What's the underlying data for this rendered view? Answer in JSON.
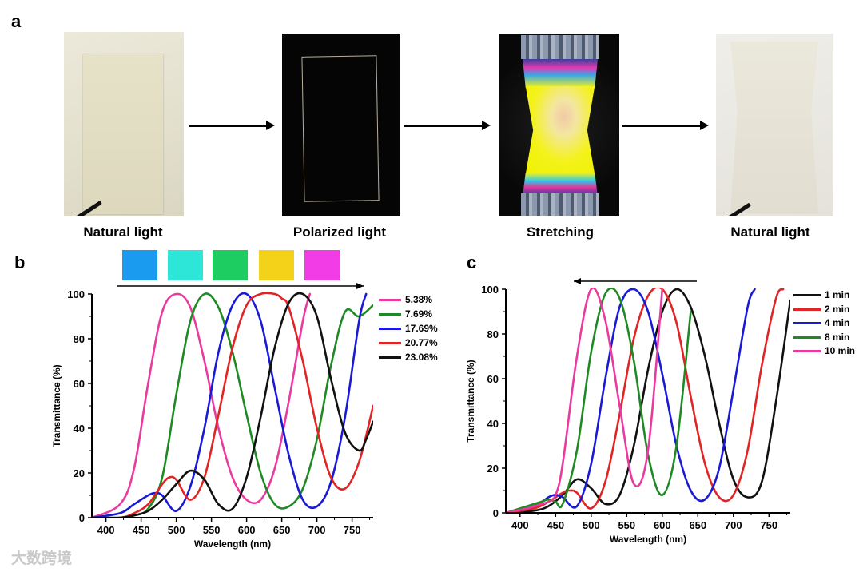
{
  "panel_labels": {
    "a": "a",
    "b": "b",
    "c": "c"
  },
  "photos": [
    {
      "caption": "Natural light"
    },
    {
      "caption": "Polarized light"
    },
    {
      "caption": "Stretching"
    },
    {
      "caption": "Natural light"
    }
  ],
  "color_swatches": [
    "#1a9bf0",
    "#2ee6d8",
    "#1ecd62",
    "#f5d21a",
    "#f23ce6"
  ],
  "watermark": "大数跨境",
  "chart_data": [
    {
      "panel": "b",
      "type": "line",
      "xlabel": "Wavelength (nm)",
      "ylabel": "Transmittance (%)",
      "xlim": [
        380,
        780
      ],
      "ylim": [
        0,
        100
      ],
      "xticks": [
        400,
        450,
        500,
        550,
        600,
        650,
        700,
        750
      ],
      "yticks": [
        0,
        20,
        40,
        60,
        80,
        100
      ],
      "arrow_direction": "right",
      "series": [
        {
          "name": "5.38%",
          "color": "#ea3aa0",
          "x": [
            380,
            420,
            440,
            460,
            480,
            500,
            520,
            540,
            560,
            580,
            600,
            620,
            640,
            660,
            680,
            690
          ],
          "y": [
            0,
            6,
            22,
            60,
            92,
            100,
            94,
            70,
            40,
            18,
            8,
            8,
            22,
            52,
            88,
            100
          ]
        },
        {
          "name": "7.69%",
          "color": "#1f8a24",
          "x": [
            380,
            420,
            440,
            460,
            480,
            500,
            520,
            540,
            560,
            580,
            600,
            620,
            640,
            660,
            680,
            700,
            720,
            740,
            760,
            780
          ],
          "y": [
            0,
            0,
            1,
            4,
            18,
            55,
            88,
            100,
            94,
            74,
            46,
            20,
            6,
            5,
            13,
            35,
            68,
            92,
            90,
            95
          ]
        },
        {
          "name": "17.69%",
          "color": "#1a1ad6",
          "x": [
            380,
            420,
            440,
            460,
            470,
            480,
            500,
            520,
            540,
            560,
            580,
            600,
            620,
            640,
            660,
            680,
            700,
            720,
            740,
            760,
            770
          ],
          "y": [
            0,
            2,
            6,
            10,
            11,
            10,
            3,
            14,
            40,
            74,
            95,
            100,
            88,
            58,
            28,
            8,
            5,
            16,
            45,
            88,
            100
          ]
        },
        {
          "name": "20.77%",
          "color": "#e12424",
          "x": [
            380,
            420,
            440,
            460,
            480,
            490,
            500,
            520,
            540,
            560,
            580,
            600,
            620,
            640,
            650,
            660,
            680,
            700,
            720,
            740,
            760,
            780
          ],
          "y": [
            0,
            0,
            2,
            6,
            15,
            18,
            17,
            8,
            18,
            46,
            76,
            95,
            100,
            100,
            98,
            94,
            70,
            40,
            18,
            13,
            25,
            50
          ]
        },
        {
          "name": "23.08%",
          "color": "#111111",
          "x": [
            380,
            420,
            440,
            460,
            480,
            500,
            520,
            540,
            560,
            580,
            600,
            620,
            640,
            660,
            680,
            700,
            720,
            740,
            760,
            770,
            780
          ],
          "y": [
            0,
            0,
            1,
            3,
            8,
            15,
            21,
            17,
            6,
            4,
            18,
            45,
            76,
            96,
            100,
            90,
            62,
            38,
            30,
            35,
            43
          ]
        }
      ]
    },
    {
      "panel": "c",
      "type": "line",
      "xlabel": "Wavelength (nm)",
      "ylabel": "Transmittance (%)",
      "xlim": [
        380,
        780
      ],
      "ylim": [
        0,
        100
      ],
      "xticks": [
        400,
        450,
        500,
        550,
        600,
        650,
        700,
        750
      ],
      "yticks": [
        0,
        20,
        40,
        60,
        80,
        100
      ],
      "arrow_direction": "left",
      "series": [
        {
          "name": "1 min",
          "color": "#111111",
          "x": [
            380,
            420,
            440,
            460,
            480,
            500,
            520,
            540,
            560,
            580,
            600,
            620,
            640,
            660,
            680,
            700,
            720,
            740,
            760,
            780
          ],
          "y": [
            0,
            1,
            3,
            8,
            15,
            11,
            4,
            8,
            30,
            64,
            90,
            100,
            92,
            70,
            40,
            15,
            7,
            14,
            50,
            95
          ]
        },
        {
          "name": "2 min",
          "color": "#e12424",
          "x": [
            380,
            420,
            440,
            460,
            470,
            480,
            500,
            520,
            540,
            560,
            580,
            600,
            620,
            640,
            660,
            680,
            700,
            720,
            740,
            760,
            770
          ],
          "y": [
            0,
            2,
            5,
            9,
            10,
            9,
            2,
            14,
            44,
            78,
            97,
            100,
            85,
            52,
            22,
            7,
            8,
            28,
            66,
            96,
            100
          ]
        },
        {
          "name": "4 min",
          "color": "#1a1ad6",
          "x": [
            380,
            420,
            440,
            450,
            460,
            480,
            500,
            520,
            540,
            560,
            580,
            600,
            620,
            640,
            660,
            680,
            700,
            720,
            730
          ],
          "y": [
            0,
            3,
            7,
            8,
            7,
            3,
            22,
            60,
            92,
            100,
            90,
            62,
            30,
            10,
            6,
            20,
            55,
            92,
            100
          ]
        },
        {
          "name": "8 min",
          "color": "#1f8a24",
          "x": [
            380,
            410,
            430,
            440,
            450,
            460,
            480,
            500,
            520,
            540,
            560,
            580,
            600,
            620,
            640
          ],
          "y": [
            0,
            3,
            5,
            6,
            5,
            4,
            28,
            72,
            98,
            96,
            68,
            26,
            8,
            30,
            90
          ]
        },
        {
          "name": "10 min",
          "color": "#ea3aa0",
          "x": [
            380,
            410,
            420,
            430,
            440,
            450,
            460,
            480,
            500,
            520,
            540,
            560,
            580,
            600
          ],
          "y": [
            0,
            2,
            3,
            4,
            5,
            8,
            22,
            70,
            100,
            86,
            48,
            13,
            28,
            100
          ]
        }
      ]
    }
  ]
}
